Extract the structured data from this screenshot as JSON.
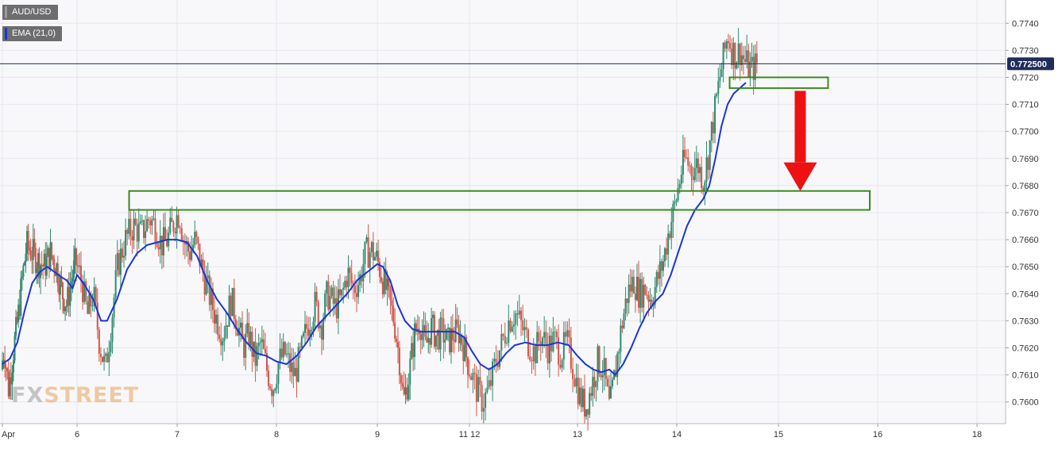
{
  "colors": {
    "background": "#ffffff",
    "plot_bg": "#f8f8fa",
    "grid": "#e6e6ec",
    "bull": "#2e8b6e",
    "bear": "#d2564a",
    "ema": "#1a35d9",
    "price_line": "#1f2d5a",
    "zone": "#3a8a1f",
    "arrow": "#ee1111",
    "axis_text": "#333333"
  },
  "legend": {
    "symbol": "AUD/USD",
    "ema": "EMA (21,0)"
  },
  "watermark": {
    "part1": "FX",
    "part2": "STREET"
  },
  "current_price_label": "0.772500",
  "chart_data": {
    "type": "candlestick",
    "title": "",
    "symbol": "AUD/USD",
    "indicator": "EMA (21,0)",
    "ylim": [
      0.7592,
      0.7748
    ],
    "y_ticks": [
      "0.7600",
      "0.7610",
      "0.7620",
      "0.7630",
      "0.7640",
      "0.7650",
      "0.7660",
      "0.7670",
      "0.7680",
      "0.7690",
      "0.7700",
      "0.7710",
      "0.7720",
      "0.7730",
      "0.7740"
    ],
    "x_labels": [
      {
        "label": "Apr",
        "pos": 0
      },
      {
        "label": "6",
        "pos": 1
      },
      {
        "label": "7",
        "pos": 2
      },
      {
        "label": "8",
        "pos": 3
      },
      {
        "label": "9",
        "pos": 4
      },
      {
        "label": "11 12",
        "pos": 5
      },
      {
        "label": "13",
        "pos": 6
      },
      {
        "label": "14",
        "pos": 7
      },
      {
        "label": "15",
        "pos": 8
      },
      {
        "label": "16",
        "pos": 9
      },
      {
        "label": "18",
        "pos": 10
      }
    ],
    "current_price": 0.7725,
    "price_path": [
      [
        0.0,
        0.7612
      ],
      [
        0.04,
        0.762
      ],
      [
        0.1,
        0.7605
      ],
      [
        0.16,
        0.7618
      ],
      [
        0.22,
        0.763
      ],
      [
        0.28,
        0.7645
      ],
      [
        0.34,
        0.7658
      ],
      [
        0.42,
        0.7655
      ],
      [
        0.5,
        0.7652
      ],
      [
        0.58,
        0.765
      ],
      [
        0.66,
        0.7655
      ],
      [
        0.74,
        0.765
      ],
      [
        0.82,
        0.764
      ],
      [
        0.88,
        0.7636
      ],
      [
        0.94,
        0.7645
      ],
      [
        1.0,
        0.7652
      ],
      [
        1.06,
        0.7645
      ],
      [
        1.12,
        0.7632
      ],
      [
        1.18,
        0.764
      ],
      [
        1.24,
        0.7622
      ],
      [
        1.3,
        0.7612
      ],
      [
        1.36,
        0.763
      ],
      [
        1.42,
        0.765
      ],
      [
        1.5,
        0.766
      ],
      [
        1.58,
        0.7665
      ],
      [
        1.66,
        0.7662
      ],
      [
        1.74,
        0.7668
      ],
      [
        1.8,
        0.7665
      ],
      [
        1.86,
        0.7658
      ],
      [
        1.92,
        0.766
      ],
      [
        2.0,
        0.7668
      ],
      [
        2.04,
        0.767
      ],
      [
        2.08,
        0.766
      ],
      [
        2.14,
        0.7655
      ],
      [
        2.2,
        0.766
      ],
      [
        2.26,
        0.765
      ],
      [
        2.32,
        0.7642
      ],
      [
        2.4,
        0.7632
      ],
      [
        2.48,
        0.7625
      ],
      [
        2.56,
        0.7638
      ],
      [
        2.62,
        0.763
      ],
      [
        2.68,
        0.762
      ],
      [
        2.74,
        0.7625
      ],
      [
        2.8,
        0.7615
      ],
      [
        2.86,
        0.7622
      ],
      [
        2.92,
        0.7612
      ],
      [
        2.98,
        0.7605
      ],
      [
        3.04,
        0.7615
      ],
      [
        3.1,
        0.7618
      ],
      [
        3.16,
        0.7612
      ],
      [
        3.2,
        0.761
      ],
      [
        3.26,
        0.7618
      ],
      [
        3.32,
        0.7628
      ],
      [
        3.4,
        0.7636
      ],
      [
        3.46,
        0.7628
      ],
      [
        3.52,
        0.764
      ],
      [
        3.6,
        0.7635
      ],
      [
        3.66,
        0.7638
      ],
      [
        3.72,
        0.7648
      ],
      [
        3.78,
        0.7642
      ],
      [
        3.84,
        0.7645
      ],
      [
        3.9,
        0.7655
      ],
      [
        3.96,
        0.7656
      ],
      [
        4.02,
        0.7652
      ],
      [
        4.08,
        0.7645
      ],
      [
        4.14,
        0.7638
      ],
      [
        4.2,
        0.763
      ],
      [
        4.26,
        0.7615
      ],
      [
        4.3,
        0.76
      ],
      [
        4.36,
        0.761
      ],
      [
        4.42,
        0.7625
      ],
      [
        4.48,
        0.763
      ],
      [
        4.54,
        0.762
      ],
      [
        4.6,
        0.7628
      ],
      [
        4.66,
        0.7624
      ],
      [
        4.72,
        0.7626
      ],
      [
        4.78,
        0.7622
      ],
      [
        4.84,
        0.7625
      ],
      [
        4.9,
        0.7626
      ],
      [
        4.96,
        0.762
      ],
      [
        5.02,
        0.7612
      ],
      [
        5.08,
        0.7605
      ],
      [
        5.14,
        0.76
      ],
      [
        5.2,
        0.7605
      ],
      [
        5.26,
        0.7615
      ],
      [
        5.32,
        0.7622
      ],
      [
        5.38,
        0.763
      ],
      [
        5.44,
        0.7633
      ],
      [
        5.5,
        0.7628
      ],
      [
        5.56,
        0.7622
      ],
      [
        5.62,
        0.7618
      ],
      [
        5.68,
        0.7625
      ],
      [
        5.74,
        0.762
      ],
      [
        5.8,
        0.7623
      ],
      [
        5.86,
        0.7618
      ],
      [
        5.92,
        0.7622
      ],
      [
        5.98,
        0.7612
      ],
      [
        6.04,
        0.7602
      ],
      [
        6.1,
        0.7598
      ],
      [
        6.16,
        0.7606
      ],
      [
        6.22,
        0.7615
      ],
      [
        6.28,
        0.7612
      ],
      [
        6.34,
        0.7597
      ],
      [
        6.4,
        0.7612
      ],
      [
        6.46,
        0.7628
      ],
      [
        6.52,
        0.764
      ],
      [
        6.58,
        0.7645
      ],
      [
        6.64,
        0.764
      ],
      [
        6.7,
        0.7642
      ],
      [
        6.76,
        0.7638
      ],
      [
        6.82,
        0.7645
      ],
      [
        6.88,
        0.7652
      ],
      [
        6.94,
        0.7664
      ],
      [
        7.0,
        0.7673
      ],
      [
        7.06,
        0.7685
      ],
      [
        7.1,
        0.769
      ],
      [
        7.16,
        0.7686
      ],
      [
        7.22,
        0.7688
      ],
      [
        7.28,
        0.7682
      ],
      [
        7.32,
        0.769
      ],
      [
        7.38,
        0.7705
      ],
      [
        7.44,
        0.772
      ],
      [
        7.48,
        0.7728
      ],
      [
        7.52,
        0.7736
      ],
      [
        7.56,
        0.773
      ],
      [
        7.6,
        0.7728
      ],
      [
        7.64,
        0.773
      ],
      [
        7.68,
        0.7726
      ],
      [
        7.72,
        0.7724
      ],
      [
        7.76,
        0.7723
      ],
      [
        7.8,
        0.7725
      ]
    ],
    "ema_path": [
      [
        0.0,
        0.7614
      ],
      [
        0.1,
        0.7616
      ],
      [
        0.2,
        0.7622
      ],
      [
        0.3,
        0.7634
      ],
      [
        0.4,
        0.7644
      ],
      [
        0.5,
        0.7648
      ],
      [
        0.6,
        0.765
      ],
      [
        0.7,
        0.7648
      ],
      [
        0.8,
        0.7646
      ],
      [
        0.86,
        0.7645
      ],
      [
        0.94,
        0.7642
      ],
      [
        1.0,
        0.7647
      ],
      [
        1.08,
        0.7643
      ],
      [
        1.16,
        0.7638
      ],
      [
        1.24,
        0.763
      ],
      [
        1.3,
        0.763
      ],
      [
        1.4,
        0.7638
      ],
      [
        1.5,
        0.7649
      ],
      [
        1.6,
        0.7655
      ],
      [
        1.7,
        0.7658
      ],
      [
        1.8,
        0.7659
      ],
      [
        1.9,
        0.766
      ],
      [
        2.0,
        0.766
      ],
      [
        2.1,
        0.7659
      ],
      [
        2.2,
        0.7654
      ],
      [
        2.3,
        0.7645
      ],
      [
        2.4,
        0.7638
      ],
      [
        2.5,
        0.7633
      ],
      [
        2.6,
        0.7627
      ],
      [
        2.7,
        0.7622
      ],
      [
        2.8,
        0.7618
      ],
      [
        2.9,
        0.7617
      ],
      [
        3.0,
        0.7615
      ],
      [
        3.1,
        0.7614
      ],
      [
        3.2,
        0.7617
      ],
      [
        3.3,
        0.7622
      ],
      [
        3.4,
        0.7628
      ],
      [
        3.5,
        0.7632
      ],
      [
        3.6,
        0.7636
      ],
      [
        3.7,
        0.764
      ],
      [
        3.8,
        0.7645
      ],
      [
        3.9,
        0.7648
      ],
      [
        4.0,
        0.7651
      ],
      [
        4.06,
        0.765
      ],
      [
        4.14,
        0.7645
      ],
      [
        4.22,
        0.7636
      ],
      [
        4.3,
        0.763
      ],
      [
        4.38,
        0.7627
      ],
      [
        4.46,
        0.7626
      ],
      [
        4.56,
        0.7626
      ],
      [
        4.7,
        0.7626
      ],
      [
        4.84,
        0.7626
      ],
      [
        4.94,
        0.7624
      ],
      [
        5.02,
        0.7619
      ],
      [
        5.1,
        0.7614
      ],
      [
        5.18,
        0.7612
      ],
      [
        5.26,
        0.7614
      ],
      [
        5.34,
        0.7618
      ],
      [
        5.42,
        0.7621
      ],
      [
        5.52,
        0.7622
      ],
      [
        5.62,
        0.7621
      ],
      [
        5.72,
        0.7621
      ],
      [
        5.82,
        0.7622
      ],
      [
        5.92,
        0.7621
      ],
      [
        6.0,
        0.7617
      ],
      [
        6.08,
        0.7614
      ],
      [
        6.16,
        0.7612
      ],
      [
        6.24,
        0.7611
      ],
      [
        6.32,
        0.7612
      ],
      [
        6.38,
        0.761
      ],
      [
        6.46,
        0.7614
      ],
      [
        6.54,
        0.762
      ],
      [
        6.62,
        0.7627
      ],
      [
        6.7,
        0.7633
      ],
      [
        6.78,
        0.7637
      ],
      [
        6.86,
        0.764
      ],
      [
        6.94,
        0.7647
      ],
      [
        7.02,
        0.7656
      ],
      [
        7.1,
        0.7665
      ],
      [
        7.18,
        0.7671
      ],
      [
        7.26,
        0.7675
      ],
      [
        7.32,
        0.768
      ],
      [
        7.38,
        0.769
      ],
      [
        7.44,
        0.7702
      ],
      [
        7.5,
        0.771
      ],
      [
        7.56,
        0.7714
      ],
      [
        7.62,
        0.7716
      ],
      [
        7.68,
        0.7718
      ]
    ],
    "annotations": [
      {
        "type": "zone",
        "x_from": 1.52,
        "x_to": 8.92,
        "y_low": 0.7671,
        "y_high": 0.7678
      },
      {
        "type": "zone",
        "x_from": 7.52,
        "x_to": 8.5,
        "y_low": 0.7716,
        "y_high": 0.772
      },
      {
        "type": "arrow",
        "direction": "down",
        "x": 8.22,
        "y_from": 0.7715,
        "y_to": 0.7678
      }
    ],
    "grid": true,
    "legend_position": "top-left"
  }
}
